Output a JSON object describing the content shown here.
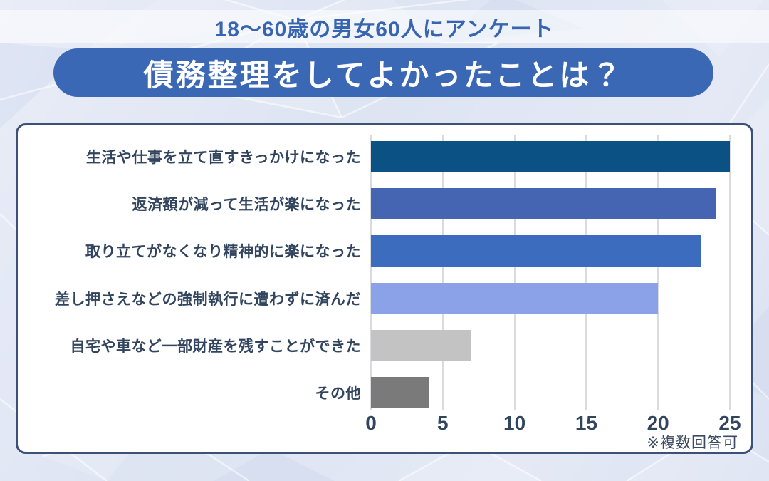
{
  "header": {
    "subtitle": "18〜60歳の男女60人にアンケート",
    "title": "債務整理をしてよかったことは？"
  },
  "colors": {
    "title-bg": "#3b68b5",
    "panel-border": "#3f5078",
    "subtitle-text": "#3765b1",
    "label-text": "#32455f",
    "grid-color": "#d8dbe0"
  },
  "chart_data": {
    "type": "bar",
    "orientation": "horizontal",
    "title": "債務整理をしてよかったことは？",
    "subtitle": "18〜60歳の男女60人にアンケート",
    "categories": [
      "生活や仕事を立て直すきっかけになった",
      "返済額が減って生活が楽になった",
      "取り立てがなくなり精神的に楽になった",
      "差し押さえなどの強制執行に遭わずに済んだ",
      "自宅や車など一部財産を残すことができた",
      "その他"
    ],
    "values": [
      25,
      24,
      23,
      20,
      7,
      4
    ],
    "bar_colors": [
      "#0b5183",
      "#4565b2",
      "#3b6cbd",
      "#8ba2e8",
      "#c3c3c3",
      "#7a7a7a"
    ],
    "x_ticks": [
      0,
      5,
      10,
      15,
      20,
      25
    ],
    "xlim": [
      0,
      25
    ],
    "grid": true,
    "legend": false,
    "note": "※複数回答可"
  }
}
